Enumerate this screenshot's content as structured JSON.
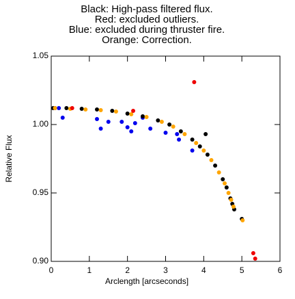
{
  "chart_data": {
    "type": "scatter",
    "title_lines": [
      "Black: High-pass filtered flux.",
      "Red: excluded outliers.",
      "Blue: excluded during thruster fire.",
      "Orange: Correction."
    ],
    "xlabel": "Arclength [arcseconds]",
    "ylabel": "Relative Flux",
    "xlim": [
      0,
      6
    ],
    "ylim": [
      0.9,
      1.05
    ],
    "xticks": [
      0,
      1,
      2,
      3,
      4,
      5,
      6
    ],
    "yticks": [
      {
        "value": 0.9,
        "label": "0.90"
      },
      0.95,
      {
        "value": 1.0,
        "label": "1.00"
      },
      1.05
    ],
    "series": [
      {
        "color": "#0000ee",
        "x": [
          0.1,
          0.2,
          0.3,
          1.2,
          1.3,
          1.5,
          1.85,
          2.0,
          2.1,
          2.2,
          2.4,
          2.6,
          3.0,
          3.3,
          3.35,
          3.7
        ],
        "values": [
          1.012,
          1.012,
          1.005,
          1.004,
          0.997,
          1.002,
          1.002,
          0.998,
          0.995,
          1.001,
          1.005,
          0.997,
          0.994,
          0.993,
          0.989,
          0.981
        ]
      },
      {
        "color": "#000000",
        "x": [
          0.05,
          0.4,
          0.8,
          1.2,
          1.6,
          2.0,
          2.4,
          2.8,
          3.1,
          3.4,
          3.7,
          3.9,
          4.05,
          4.1,
          4.3,
          4.5,
          4.6,
          4.7,
          4.75,
          4.8,
          5.0
        ],
        "values": [
          1.012,
          1.012,
          1.0115,
          1.011,
          1.01,
          1.008,
          1.006,
          1.003,
          1.0,
          0.995,
          0.989,
          0.984,
          0.993,
          0.978,
          0.97,
          0.96,
          0.954,
          0.946,
          0.942,
          0.938,
          0.931
        ]
      },
      {
        "color": "#ffa500",
        "x": [
          0.1,
          0.5,
          0.9,
          1.3,
          1.7,
          2.1,
          2.5,
          2.9,
          3.2,
          3.5,
          3.8,
          4.0,
          4.2,
          4.4,
          4.55,
          4.65,
          4.72,
          4.78,
          5.02
        ],
        "values": [
          1.012,
          1.0115,
          1.011,
          1.0105,
          1.0095,
          1.0075,
          1.0055,
          1.002,
          0.9985,
          0.993,
          0.9865,
          0.981,
          0.974,
          0.965,
          0.957,
          0.95,
          0.945,
          0.94,
          0.93
        ]
      },
      {
        "color": "#ee0000",
        "x": [
          0.55,
          2.15,
          3.75,
          5.3,
          5.35
        ],
        "values": [
          1.012,
          1.01,
          1.031,
          0.906,
          0.902
        ]
      }
    ]
  }
}
